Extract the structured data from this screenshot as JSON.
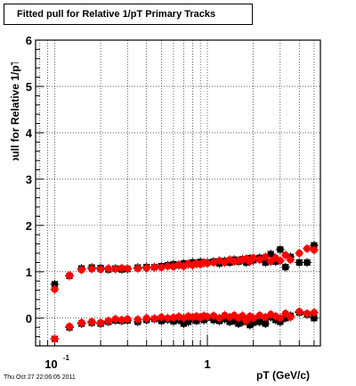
{
  "title": "Fitted pull for Relative 1/pT  Primary Tracks",
  "footer": "Thu Oct 27 22:06:05 2011",
  "colors": {
    "series_black": "#000000",
    "series_red": "#ff0000",
    "grid": "#000000",
    "frame": "#000000"
  },
  "chart_data": {
    "type": "scatter",
    "title": "Fitted pull for Relative 1/pT  Primary Tracks",
    "xlabel": "pT (GeV/c)",
    "ylabel": "pull for Relative 1/pT",
    "xscale": "log",
    "xlim": [
      0.075,
      5.5
    ],
    "ylim": [
      -0.6,
      6
    ],
    "grid": true,
    "y_ticks": [
      0,
      1,
      2,
      3,
      4,
      5,
      6
    ],
    "y_tick_labels": [
      "0",
      "1",
      "2",
      "3",
      "4",
      "5",
      "6"
    ],
    "x_tick_labels": [
      {
        "value": 0.1,
        "base": "10",
        "exp": "-1"
      },
      {
        "value": 1,
        "label": "1"
      }
    ],
    "series": [
      {
        "color": "black",
        "marker": "square",
        "x": [
          0.1,
          0.125,
          0.15,
          0.175,
          0.2,
          0.225,
          0.25,
          0.275,
          0.3,
          0.35,
          0.4,
          0.45,
          0.5,
          0.55,
          0.6,
          0.65,
          0.7,
          0.75,
          0.8,
          0.85,
          0.9,
          0.95,
          1.0,
          1.1,
          1.2,
          1.3,
          1.4,
          1.5,
          1.6,
          1.7,
          1.8,
          1.9,
          2.0,
          2.2,
          2.4,
          2.6,
          2.8,
          3.0,
          3.25,
          3.5,
          4.0,
          4.5,
          5.0
        ],
        "y": [
          0.73,
          0.91,
          1.07,
          1.09,
          1.08,
          1.05,
          1.07,
          1.05,
          1.06,
          1.09,
          1.1,
          1.1,
          1.12,
          1.14,
          1.16,
          1.14,
          1.18,
          1.16,
          1.2,
          1.17,
          1.21,
          1.19,
          1.2,
          1.22,
          1.18,
          1.23,
          1.2,
          1.26,
          1.22,
          1.27,
          1.2,
          1.29,
          1.25,
          1.3,
          1.2,
          1.38,
          1.22,
          1.48,
          1.1,
          1.32,
          1.2,
          1.2,
          1.57
        ]
      },
      {
        "color": "black",
        "marker": "square",
        "x": [
          0.1,
          0.125,
          0.15,
          0.175,
          0.2,
          0.225,
          0.25,
          0.275,
          0.3,
          0.35,
          0.4,
          0.45,
          0.5,
          0.55,
          0.6,
          0.65,
          0.7,
          0.75,
          0.8,
          0.85,
          0.9,
          0.95,
          1.0,
          1.1,
          1.2,
          1.3,
          1.4,
          1.5,
          1.6,
          1.7,
          1.8,
          1.9,
          2.0,
          2.2,
          2.4,
          2.6,
          2.8,
          3.0,
          3.25,
          3.5,
          4.0,
          4.5,
          5.0
        ],
        "y": [
          -0.45,
          -0.2,
          -0.12,
          -0.1,
          -0.12,
          -0.08,
          -0.05,
          -0.06,
          -0.05,
          -0.08,
          -0.04,
          -0.02,
          -0.06,
          -0.03,
          -0.07,
          -0.04,
          -0.12,
          -0.08,
          -0.02,
          -0.06,
          0.02,
          -0.04,
          0.01,
          -0.04,
          -0.06,
          -0.02,
          -0.08,
          -0.06,
          -0.12,
          -0.08,
          -0.04,
          -0.15,
          -0.1,
          -0.08,
          -0.12,
          0.02,
          -0.04,
          -0.08,
          0.0,
          0.05,
          0.12,
          0.08,
          0.0
        ]
      },
      {
        "color": "red",
        "marker": "circle",
        "x": [
          0.1,
          0.125,
          0.15,
          0.175,
          0.2,
          0.225,
          0.25,
          0.275,
          0.3,
          0.35,
          0.4,
          0.45,
          0.5,
          0.55,
          0.6,
          0.65,
          0.7,
          0.75,
          0.8,
          0.85,
          0.9,
          0.95,
          1.0,
          1.1,
          1.2,
          1.3,
          1.4,
          1.5,
          1.6,
          1.7,
          1.8,
          1.9,
          2.0,
          2.2,
          2.4,
          2.6,
          2.8,
          3.0,
          3.25,
          3.5,
          4.0,
          4.5,
          5.0
        ],
        "y": [
          0.62,
          0.92,
          1.04,
          1.06,
          1.05,
          1.07,
          1.06,
          1.08,
          1.07,
          1.07,
          1.08,
          1.1,
          1.09,
          1.12,
          1.11,
          1.15,
          1.12,
          1.17,
          1.14,
          1.18,
          1.16,
          1.2,
          1.18,
          1.2,
          1.24,
          1.2,
          1.26,
          1.22,
          1.24,
          1.26,
          1.28,
          1.22,
          1.3,
          1.26,
          1.32,
          1.22,
          1.3,
          1.24,
          1.36,
          1.26,
          1.4,
          1.5,
          1.47
        ]
      },
      {
        "color": "red",
        "marker": "circle",
        "x": [
          0.1,
          0.125,
          0.15,
          0.175,
          0.2,
          0.225,
          0.25,
          0.275,
          0.3,
          0.35,
          0.4,
          0.45,
          0.5,
          0.55,
          0.6,
          0.65,
          0.7,
          0.75,
          0.8,
          0.85,
          0.9,
          0.95,
          1.0,
          1.1,
          1.2,
          1.3,
          1.4,
          1.5,
          1.6,
          1.7,
          1.8,
          1.9,
          2.0,
          2.2,
          2.4,
          2.6,
          2.8,
          3.0,
          3.25,
          3.5,
          4.0,
          4.5,
          5.0
        ],
        "y": [
          -0.45,
          -0.18,
          -0.1,
          -0.08,
          -0.1,
          -0.06,
          -0.02,
          -0.04,
          -0.02,
          -0.03,
          0.0,
          -0.01,
          0.02,
          0.0,
          0.01,
          0.03,
          0.0,
          0.04,
          0.02,
          0.04,
          0.01,
          0.05,
          0.03,
          0.05,
          0.0,
          0.06,
          0.02,
          0.06,
          0.0,
          0.05,
          -0.06,
          0.04,
          0.0,
          0.06,
          0.02,
          0.08,
          0.04,
          0.0,
          0.1,
          0.02,
          0.14,
          0.1,
          0.12
        ]
      }
    ]
  }
}
